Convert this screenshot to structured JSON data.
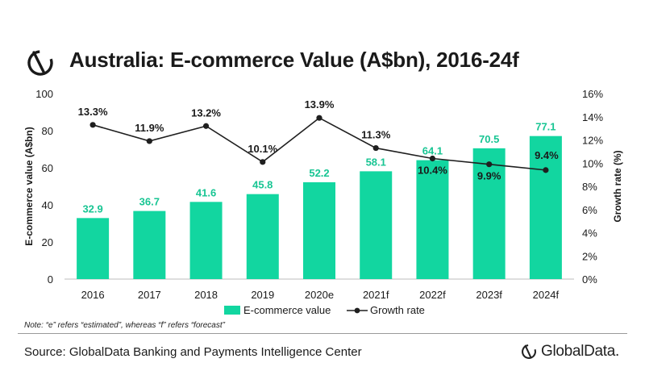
{
  "header": {
    "title": "Australia: E-commerce Value (A$bn), 2016-24f"
  },
  "note": "Note: “e” refers “estimated”, whereas “f” refers “forecast”",
  "footer": {
    "source": "Source: GlobalData Banking and Payments Intelligence Center",
    "brand": "GlobalData."
  },
  "colors": {
    "bar": "#12d6a0",
    "bar_label": "#18c593",
    "line": "#1f1f1f",
    "text": "#1a1a1a"
  },
  "chart_data": {
    "type": "bar",
    "categories": [
      "2016",
      "2017",
      "2018",
      "2019",
      "2020e",
      "2021f",
      "2022f",
      "2023f",
      "2024f"
    ],
    "series": [
      {
        "name": "E-commerce value",
        "type": "bar",
        "axis": "left",
        "values": [
          32.9,
          36.7,
          41.6,
          45.8,
          52.2,
          58.1,
          64.1,
          70.5,
          77.1
        ],
        "labels": [
          "32.9",
          "36.7",
          "41.6",
          "45.8",
          "52.2",
          "58.1",
          "64.1",
          "70.5",
          "77.1"
        ]
      },
      {
        "name": "Growth rate",
        "type": "line",
        "axis": "right",
        "values": [
          13.3,
          11.9,
          13.2,
          10.1,
          13.9,
          11.3,
          10.4,
          9.9,
          9.4
        ],
        "labels": [
          "13.3%",
          "11.9%",
          "13.2%",
          "10.1%",
          "13.9%",
          "11.3%",
          "10.4%",
          "9.9%",
          "9.4%"
        ]
      }
    ],
    "ylabel_left": "E-commerce value (A$bn)",
    "ylabel_right": "Growth rate (%)",
    "ylim_left": [
      0,
      100
    ],
    "ylim_right": [
      0,
      16
    ],
    "yticks_left": [
      "0",
      "20",
      "40",
      "60",
      "80",
      "100"
    ],
    "yticks_right": [
      "0%",
      "2%",
      "4%",
      "6%",
      "8%",
      "10%",
      "12%",
      "14%",
      "16%"
    ],
    "grid": false,
    "legend_position": "bottom"
  }
}
